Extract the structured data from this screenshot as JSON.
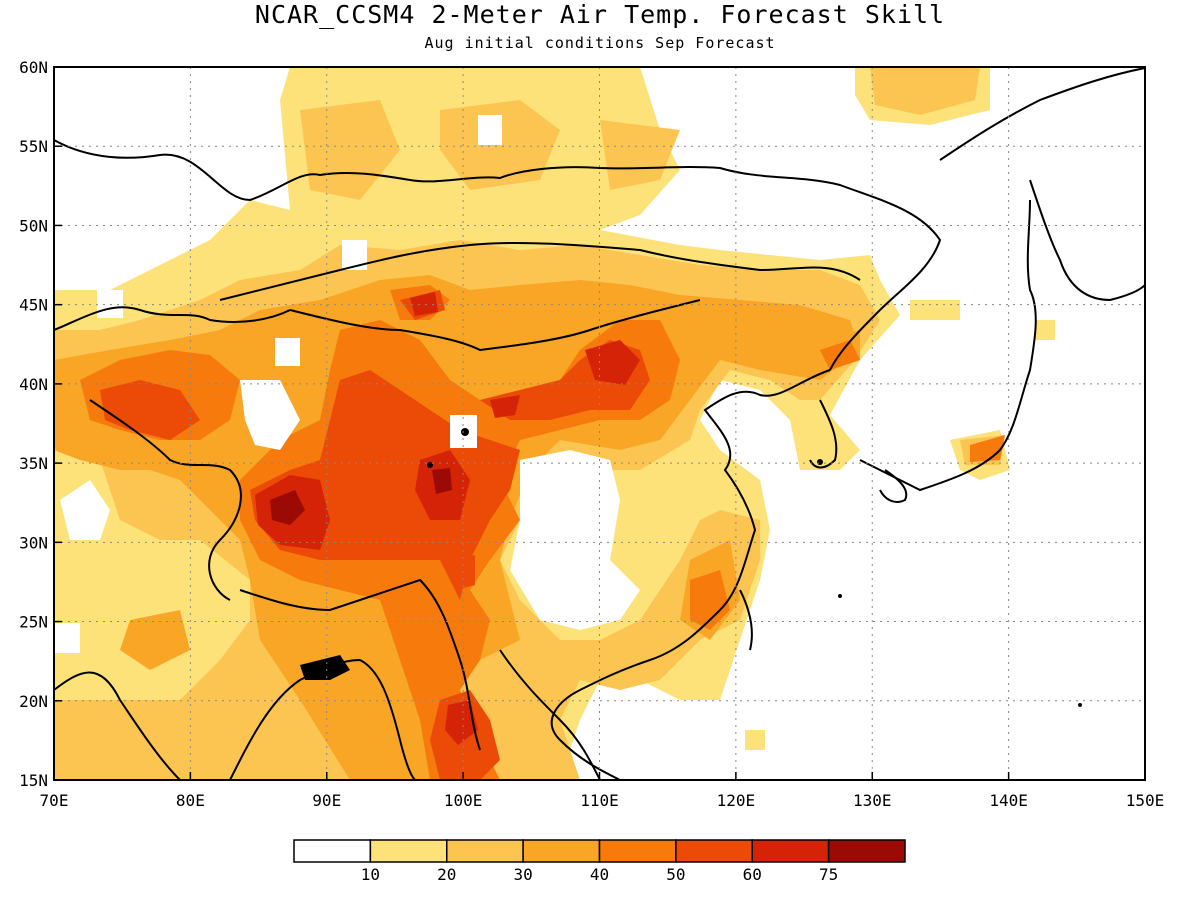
{
  "title": "NCAR_CCSM4 2-Meter Air Temp. Forecast Skill",
  "subtitle": "Aug initial conditions  Sep Forecast",
  "map": {
    "lon_range": [
      70,
      150
    ],
    "lat_range": [
      15,
      60
    ],
    "lon_ticks": [
      70,
      80,
      90,
      100,
      110,
      120,
      130,
      140,
      150
    ],
    "lon_tick_labels": [
      "70E",
      "80E",
      "90E",
      "100E",
      "110E",
      "120E",
      "130E",
      "140E",
      "150E"
    ],
    "lat_ticks": [
      15,
      20,
      25,
      30,
      35,
      40,
      45,
      50,
      55,
      60
    ],
    "lat_tick_labels": [
      "15N",
      "20N",
      "25N",
      "30N",
      "35N",
      "40N",
      "45N",
      "50N",
      "55N",
      "60N"
    ],
    "grid": "dotted"
  },
  "colorbar": {
    "levels": [
      10,
      20,
      30,
      40,
      50,
      60,
      75
    ],
    "labels": [
      "10",
      "20",
      "30",
      "40",
      "50",
      "60",
      "75"
    ],
    "colors": [
      "#ffffff",
      "#fde27a",
      "#fcc552",
      "#f9a526",
      "#f67a0c",
      "#ec4a07",
      "#d42306",
      "#9c0a05"
    ]
  }
}
